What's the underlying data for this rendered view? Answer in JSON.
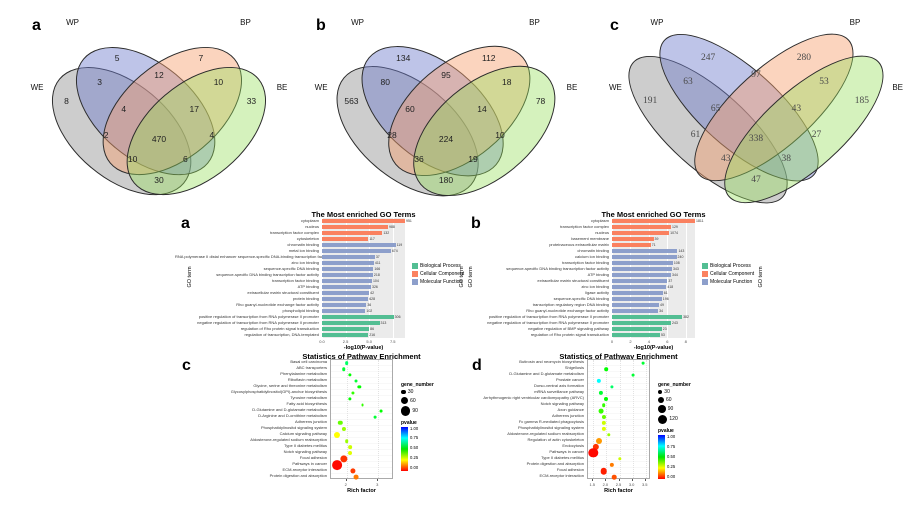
{
  "figure_colors": {
    "venn_fill": {
      "wp": "rgba(110,125,205,0.45)",
      "bp": "rgba(246,160,110,0.45)",
      "we": "rgba(130,130,130,0.40)",
      "be": "rgba(150,222,90,0.40)"
    },
    "category": {
      "Biological Process": "#53BE93",
      "Cellular Component": "#FA8160",
      "Molecular Function": "#8D9FCB"
    }
  },
  "chart_data": [
    {
      "id": "venn-a",
      "type": "venn4",
      "style": "rounded",
      "panel_letter": "a",
      "sets": {
        "WP": "WP",
        "BP": "BP",
        "WE": "WE",
        "BE": "BE"
      },
      "regions": {
        "wp": "5",
        "bp": "7",
        "wp_bp": "12",
        "we": "8",
        "be": "33",
        "wp_we": "3",
        "bp_be": "10",
        "wp_bp_we": "4",
        "wp_bp_be": "17",
        "we_bp": "2",
        "wp_be": "4",
        "all": "470",
        "we_bp_be": "10",
        "wp_we_be": "6",
        "we_be": "30"
      }
    },
    {
      "id": "venn-b",
      "type": "venn4",
      "style": "rounded",
      "panel_letter": "b",
      "sets": {
        "WP": "WP",
        "BP": "BP",
        "WE": "WE",
        "BE": "BE"
      },
      "regions": {
        "wp": "134",
        "bp": "112",
        "wp_bp": "95",
        "we": "563",
        "be": "78",
        "wp_we": "80",
        "bp_be": "18",
        "wp_bp_we": "60",
        "wp_bp_be": "14",
        "we_bp": "28",
        "wp_be": "10",
        "all": "224",
        "we_bp_be": "36",
        "wp_we_be": "19",
        "we_be": "180"
      }
    },
    {
      "id": "venn-c",
      "type": "venn4",
      "style": "classic",
      "panel_letter": "c",
      "sets": {
        "WP": "WP",
        "BP": "BP",
        "WE": "WE",
        "BE": "BE"
      },
      "regions": {
        "wp": "247",
        "bp": "280",
        "wp_bp": "97",
        "we": "191",
        "be": "185",
        "wp_we": "63",
        "bp_be": "53",
        "wp_bp_we": "65",
        "wp_bp_be": "43",
        "we_bp": "61",
        "wp_be": "27",
        "all": "338",
        "we_bp_be": "43",
        "wp_we_be": "38",
        "we_be": "47"
      }
    },
    {
      "id": "go-a",
      "type": "bar",
      "panel_letter": "a",
      "title": "The Most enriched GO Terms",
      "xlabel": "-log10(P-value)",
      "ylabel": "GO term",
      "xlim": [
        0,
        8.8
      ],
      "xticks": [
        "0.0",
        "2.5",
        "5.0",
        "7.5"
      ],
      "xtick_values": [
        0,
        2.5,
        5,
        7.5
      ],
      "legend": [
        "Biological Process",
        "Cellular Component",
        "Molecular Function"
      ],
      "terms": [
        {
          "label": "cytoplasm",
          "category": "Cellular Component",
          "value": 8.8,
          "count": "951"
        },
        {
          "label": "nucleus",
          "category": "Cellular Component",
          "value": 7.0,
          "count": "988"
        },
        {
          "label": "transcription factor complex",
          "category": "Cellular Component",
          "value": 6.4,
          "count": "132"
        },
        {
          "label": "cytoskeleton",
          "category": "Cellular Component",
          "value": 4.9,
          "count": "117"
        },
        {
          "label": "chromatin binding",
          "category": "Molecular Function",
          "value": 7.8,
          "count": "119"
        },
        {
          "label": "metal ion binding",
          "category": "Molecular Function",
          "value": 7.3,
          "count": "674"
        },
        {
          "label": "RNA polymerase II distal enhancer sequence-specific DNA-binding transcription factor activity",
          "category": "Molecular Function",
          "value": 5.6,
          "count": "37"
        },
        {
          "label": "zinc ion binding",
          "category": "Molecular Function",
          "value": 5.5,
          "count": "411"
        },
        {
          "label": "sequence-specific DNA binding",
          "category": "Molecular Function",
          "value": 5.45,
          "count": "166"
        },
        {
          "label": "sequence-specific DNA binding transcription factor activity",
          "category": "Molecular Function",
          "value": 5.4,
          "count": "218"
        },
        {
          "label": "transcription factor binding",
          "category": "Molecular Function",
          "value": 5.3,
          "count": "104"
        },
        {
          "label": "ATP binding",
          "category": "Molecular Function",
          "value": 5.2,
          "count": "326"
        },
        {
          "label": "extracellular matrix structural constituent",
          "category": "Molecular Function",
          "value": 5.0,
          "count": "42"
        },
        {
          "label": "protein binding",
          "category": "Molecular Function",
          "value": 4.9,
          "count": "628"
        },
        {
          "label": "Rho guanyl-nucleotide exchange factor activity",
          "category": "Molecular Function",
          "value": 4.7,
          "count": "36"
        },
        {
          "label": "phospholipid binding",
          "category": "Molecular Function",
          "value": 4.6,
          "count": "102"
        },
        {
          "label": "positive regulation of transcription from RNA polymerase II promoter",
          "category": "Biological Process",
          "value": 7.6,
          "count": "306"
        },
        {
          "label": "negative regulation of transcription from RNA polymerase II promoter",
          "category": "Biological Process",
          "value": 6.1,
          "count": "313"
        },
        {
          "label": "regulation of Rho protein signal transduction",
          "category": "Biological Process",
          "value": 5.0,
          "count": "86"
        },
        {
          "label": "regulation of transcription, DNA-templated",
          "category": "Biological Process",
          "value": 4.9,
          "count": "216"
        }
      ]
    },
    {
      "id": "go-b",
      "type": "bar",
      "panel_letter": "b",
      "title": "The Most enriched GO Terms",
      "xlabel": "-log10(P-value)",
      "ylabel": "GO term",
      "xlim": [
        0,
        9.0
      ],
      "xticks": [
        "0",
        "2",
        "4",
        "6",
        "8"
      ],
      "xtick_values": [
        0,
        2,
        4,
        6,
        8
      ],
      "legend": [
        "Biological Process",
        "Cellular Component",
        "Molecular Function"
      ],
      "terms": [
        {
          "label": "cytoplasm",
          "category": "Cellular Component",
          "value": 9.0,
          "count": "1811"
        },
        {
          "label": "transcription factor complex",
          "category": "Cellular Component",
          "value": 6.4,
          "count": "129"
        },
        {
          "label": "nucleus",
          "category": "Cellular Component",
          "value": 6.2,
          "count": "1074"
        },
        {
          "label": "basement membrane",
          "category": "Cellular Component",
          "value": 4.5,
          "count": "39"
        },
        {
          "label": "proteinaceous extracellular matrix",
          "category": "Cellular Component",
          "value": 4.2,
          "count": "71"
        },
        {
          "label": "chromatin binding",
          "category": "Molecular Function",
          "value": 7.1,
          "count": "143"
        },
        {
          "label": "calcium ion binding",
          "category": "Molecular Function",
          "value": 7.0,
          "count": "240"
        },
        {
          "label": "transcription factor binding",
          "category": "Molecular Function",
          "value": 6.6,
          "count": "108"
        },
        {
          "label": "sequence-specific DNA binding transcription factor activity",
          "category": "Molecular Function",
          "value": 6.5,
          "count": "343"
        },
        {
          "label": "ATP binding",
          "category": "Molecular Function",
          "value": 6.4,
          "count": "344"
        },
        {
          "label": "extracellular matrix structural constituent",
          "category": "Molecular Function",
          "value": 6.0,
          "count": "37"
        },
        {
          "label": "zinc ion binding",
          "category": "Molecular Function",
          "value": 5.9,
          "count": "418"
        },
        {
          "label": "ligase activity",
          "category": "Molecular Function",
          "value": 5.5,
          "count": "61"
        },
        {
          "label": "sequence-specific DNA binding",
          "category": "Molecular Function",
          "value": 5.4,
          "count": "196"
        },
        {
          "label": "transcription regulatory region DNA binding",
          "category": "Molecular Function",
          "value": 5.1,
          "count": "49"
        },
        {
          "label": "Rho guanyl-nucleotide exchange factor activity",
          "category": "Molecular Function",
          "value": 5.0,
          "count": "34"
        },
        {
          "label": "positive regulation of transcription from RNA polymerase II promoter",
          "category": "Biological Process",
          "value": 7.6,
          "count": "382"
        },
        {
          "label": "negative regulation of transcription from RNA polymerase II promoter",
          "category": "Biological Process",
          "value": 6.4,
          "count": "243"
        },
        {
          "label": "negative regulation of BMP signaling pathway",
          "category": "Biological Process",
          "value": 5.4,
          "count": "23"
        },
        {
          "label": "regulation of Rho protein signal transduction",
          "category": "Biological Process",
          "value": 5.2,
          "count": "53"
        }
      ]
    },
    {
      "id": "pathway-c",
      "type": "scatter",
      "panel_letter": "c",
      "title": "Statistics of Pathway Enrichment",
      "xlabel": "Rich factor",
      "xlim": [
        1.5,
        3.5
      ],
      "xticks": [
        "2",
        "3"
      ],
      "xtick_values": [
        2,
        3
      ],
      "legend": {
        "size_title": "gene_number",
        "sizes": [
          "30",
          "60",
          "90"
        ],
        "size_values": [
          30,
          60,
          90
        ],
        "color_title": "pvalue",
        "color_stops": [
          "1.00",
          "0.75",
          "0.50",
          "0.25",
          "0.00"
        ]
      },
      "pathways": [
        {
          "label": "Basal cell carcinoma",
          "rich_factor": 2.0,
          "gene_number": 14,
          "pvalue": 0.6
        },
        {
          "label": "ABC transporters",
          "rich_factor": 1.9,
          "gene_number": 12,
          "pvalue": 0.55
        },
        {
          "label": "Phenylalanine metabolism",
          "rich_factor": 2.1,
          "gene_number": 8,
          "pvalue": 0.5
        },
        {
          "label": "Riboflavin metabolism",
          "rich_factor": 2.3,
          "gene_number": 5,
          "pvalue": 0.55
        },
        {
          "label": "Glycine, serine and threonine metabolism",
          "rich_factor": 2.4,
          "gene_number": 10,
          "pvalue": 0.5
        },
        {
          "label": "Glycosylphosphatidylinositol(GPI)-anchor biosynthesis",
          "rich_factor": 2.2,
          "gene_number": 7,
          "pvalue": 0.45
        },
        {
          "label": "Tyrosine metabolism",
          "rich_factor": 2.1,
          "gene_number": 9,
          "pvalue": 0.5
        },
        {
          "label": "Fatty acid biosynthesis",
          "rich_factor": 2.5,
          "gene_number": 5,
          "pvalue": 0.45
        },
        {
          "label": "D-Glutamine and D-glutamate metabolism",
          "rich_factor": 3.1,
          "gene_number": 4,
          "pvalue": 0.5
        },
        {
          "label": "D-Arginine and D-ornithine metabolism",
          "rich_factor": 2.9,
          "gene_number": 3,
          "pvalue": 0.55
        },
        {
          "label": "Adherens junction",
          "rich_factor": 1.8,
          "gene_number": 24,
          "pvalue": 0.4
        },
        {
          "label": "Phosphatidylinositol signaling system",
          "rich_factor": 1.9,
          "gene_number": 20,
          "pvalue": 0.35
        },
        {
          "label": "Calcium signaling pathway",
          "rich_factor": 1.7,
          "gene_number": 46,
          "pvalue": 0.25
        },
        {
          "label": "Aldosterone-regulated sodium reabsorption",
          "rich_factor": 2.0,
          "gene_number": 13,
          "pvalue": 0.35
        },
        {
          "label": "Type II diabetes mellitus",
          "rich_factor": 2.1,
          "gene_number": 15,
          "pvalue": 0.3
        },
        {
          "label": "Notch signaling pathway",
          "rich_factor": 2.1,
          "gene_number": 18,
          "pvalue": 0.28
        },
        {
          "label": "Focal adhesion",
          "rich_factor": 1.9,
          "gene_number": 62,
          "pvalue": 0.05
        },
        {
          "label": "Pathways in cancer",
          "rich_factor": 1.7,
          "gene_number": 95,
          "pvalue": 0.01
        },
        {
          "label": "ECM-receptor interaction",
          "rich_factor": 2.2,
          "gene_number": 34,
          "pvalue": 0.06
        },
        {
          "label": "Protein digestion and absorption",
          "rich_factor": 2.3,
          "gene_number": 30,
          "pvalue": 0.12
        }
      ]
    },
    {
      "id": "pathway-d",
      "type": "scatter",
      "panel_letter": "d",
      "title": "Statistics of Pathway Enrichment",
      "xlabel": "Rich factor",
      "xlim": [
        1.3,
        3.7
      ],
      "xticks": [
        "1.5",
        "2.0",
        "2.5",
        "3.0",
        "3.5"
      ],
      "xtick_values": [
        1.5,
        2.0,
        2.5,
        3.0,
        3.5
      ],
      "legend": {
        "size_title": "gene_number",
        "sizes": [
          "30",
          "60",
          "90",
          "120"
        ],
        "size_values": [
          30,
          60,
          90,
          120
        ],
        "color_title": "pvalue",
        "color_stops": [
          "1.00",
          "0.75",
          "0.50",
          "0.25",
          "0.00"
        ]
      },
      "pathways": [
        {
          "label": "Butirosin and neomycin biosynthesis",
          "rich_factor": 3.4,
          "gene_number": 4,
          "pvalue": 0.55
        },
        {
          "label": "Shigellosis",
          "rich_factor": 2.0,
          "gene_number": 18,
          "pvalue": 0.5
        },
        {
          "label": "D-Glutamine and D-glutamate metabolism",
          "rich_factor": 3.0,
          "gene_number": 5,
          "pvalue": 0.55
        },
        {
          "label": "Prostate cancer",
          "rich_factor": 1.7,
          "gene_number": 30,
          "pvalue": 0.75
        },
        {
          "label": "Dorso-ventral axis formation",
          "rich_factor": 2.2,
          "gene_number": 10,
          "pvalue": 0.6
        },
        {
          "label": "mRNA surveillance pathway",
          "rich_factor": 1.8,
          "gene_number": 28,
          "pvalue": 0.55
        },
        {
          "label": "Arrhythmogenic right ventricular cardiomyopathy (ARVC)",
          "rich_factor": 2.0,
          "gene_number": 25,
          "pvalue": 0.5
        },
        {
          "label": "Notch signaling pathway",
          "rich_factor": 1.9,
          "gene_number": 18,
          "pvalue": 0.45
        },
        {
          "label": "Axon guidance",
          "rich_factor": 1.8,
          "gene_number": 40,
          "pvalue": 0.45
        },
        {
          "label": "Adherens junction",
          "rich_factor": 1.9,
          "gene_number": 26,
          "pvalue": 0.4
        },
        {
          "label": "Fc gamma R-mediated phagocytosis",
          "rich_factor": 1.9,
          "gene_number": 30,
          "pvalue": 0.3
        },
        {
          "label": "Phosphatidylinositol signaling system",
          "rich_factor": 1.9,
          "gene_number": 28,
          "pvalue": 0.28
        },
        {
          "label": "Aldosterone-regulated sodium reabsorption",
          "rich_factor": 2.1,
          "gene_number": 15,
          "pvalue": 0.35
        },
        {
          "label": "Regulation of actin cytoskeleton",
          "rich_factor": 1.7,
          "gene_number": 60,
          "pvalue": 0.15
        },
        {
          "label": "Endocytosis",
          "rich_factor": 1.6,
          "gene_number": 65,
          "pvalue": 0.05
        },
        {
          "label": "Pathways in cancer",
          "rich_factor": 1.5,
          "gene_number": 120,
          "pvalue": 0.01
        },
        {
          "label": "Type II diabetes mellitus",
          "rich_factor": 2.5,
          "gene_number": 14,
          "pvalue": 0.3
        },
        {
          "label": "Protein digestion and absorption",
          "rich_factor": 2.2,
          "gene_number": 30,
          "pvalue": 0.12
        },
        {
          "label": "Focal adhesion",
          "rich_factor": 1.9,
          "gene_number": 70,
          "pvalue": 0.03
        },
        {
          "label": "ECM-receptor interaction",
          "rich_factor": 2.3,
          "gene_number": 35,
          "pvalue": 0.08
        }
      ]
    }
  ]
}
